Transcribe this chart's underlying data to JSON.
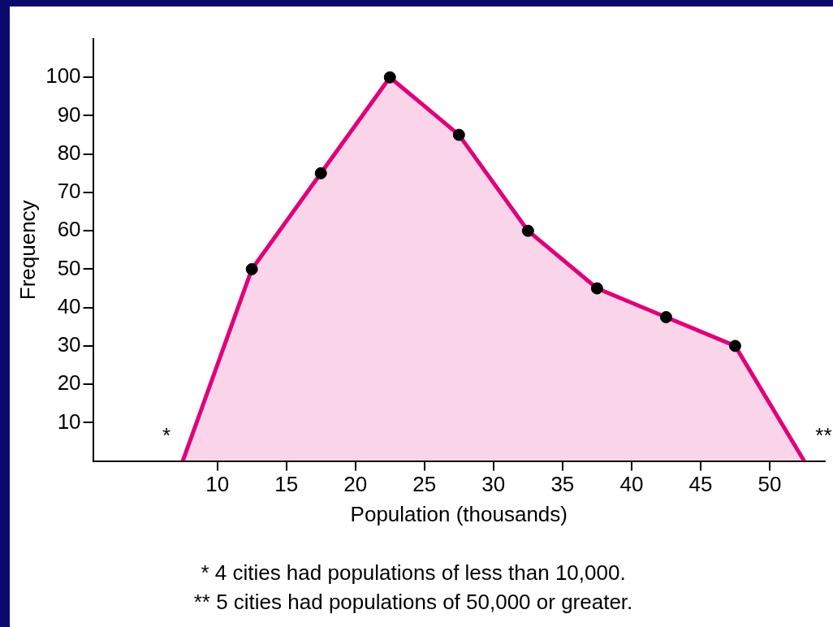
{
  "chart_data": {
    "type": "area",
    "xlabel": "Population (thousands)",
    "ylabel": "Frequency",
    "series": [
      {
        "type": "area",
        "color": "#e0007a",
        "x": [
          7.5,
          12.5,
          17.5,
          22.5,
          27.5,
          32.5,
          37.5,
          42.5,
          47.5,
          52.5
        ],
        "values": [
          0,
          50,
          75,
          100,
          85,
          60,
          45,
          37.5,
          30,
          0
        ],
        "marker": "none"
      },
      {
        "type": "scatter",
        "color": "#000000",
        "x": [
          12.5,
          17.5,
          22.5,
          27.5,
          32.5,
          37.5,
          42.5,
          47.5
        ],
        "values": [
          50,
          75,
          100,
          85,
          60,
          45,
          37.5,
          30
        ],
        "marker": "circle"
      }
    ],
    "xlim": [
      1,
      54
    ],
    "xticks": [
      10,
      15,
      20,
      25,
      30,
      35,
      40,
      45,
      50
    ],
    "ylim": [
      0,
      110
    ],
    "yticks": [
      10,
      20,
      30,
      40,
      50,
      60,
      70,
      80,
      90,
      100
    ],
    "grid": false,
    "legend": false,
    "annotations": [
      {
        "text": "*",
        "x": 7.5,
        "y": 0
      },
      {
        "text": "**",
        "x": 52.5,
        "y": 0
      },
      "* 4 cities had populations of less than 10,000.",
      "** 5 cities had populations of 50,000 or greater."
    ]
  }
}
